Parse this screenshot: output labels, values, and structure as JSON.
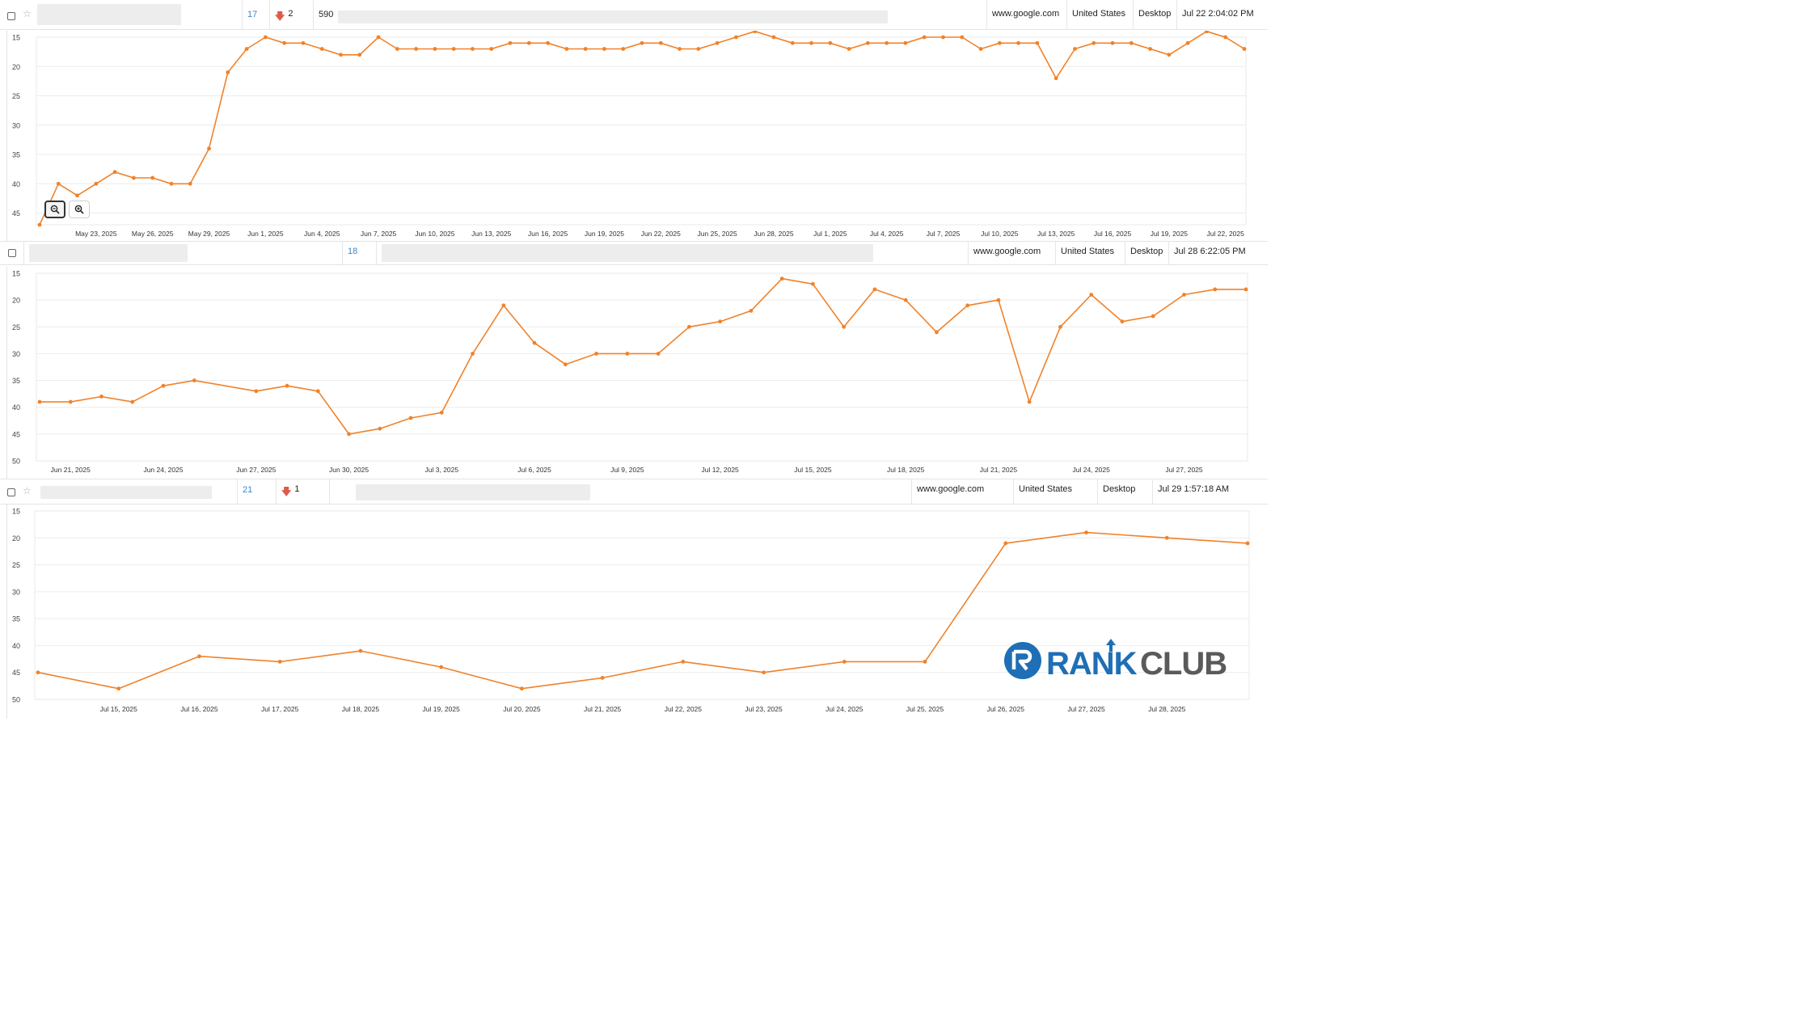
{
  "rows": [
    {
      "position": "17",
      "change": "2",
      "volume": "590",
      "engine": "www.google.com",
      "country": "United States",
      "device": "Desktop",
      "updated": "Jul 22 2:04:02 PM"
    },
    {
      "position": "18",
      "engine": "www.google.com",
      "country": "United States",
      "device": "Desktop",
      "updated": "Jul 28 6:22:05 PM"
    },
    {
      "position": "21",
      "change": "1",
      "engine": "www.google.com",
      "country": "United States",
      "device": "Desktop",
      "updated": "Jul 29 1:57:18 AM"
    }
  ],
  "icons": {
    "checkbox": "checkbox-icon",
    "star": "star-icon",
    "down_arrow": "arrow-down-icon",
    "zoom_out": "zoom-out-icon",
    "zoom_in": "zoom-in-icon"
  },
  "colors": {
    "line": "#f0822a",
    "grid": "#ececec",
    "link": "#3a87c8",
    "down": "#e05a4a",
    "logo_blue": "#1e6fb5",
    "logo_gray": "#5a5a5a"
  },
  "logo": {
    "rank": "RANK",
    "club": "CLUB"
  },
  "chart_data": [
    {
      "type": "line",
      "ylim": [
        15,
        47
      ],
      "y_reversed": true,
      "grid": true,
      "yticks": [
        "15",
        "20",
        "25",
        "30",
        "35",
        "40",
        "45"
      ],
      "xtick_labels": [
        "May 23, 2025",
        "May 26, 2025",
        "May 29, 2025",
        "Jun 1, 2025",
        "Jun 4, 2025",
        "Jun 7, 2025",
        "Jun 10, 2025",
        "Jun 13, 2025",
        "Jun 16, 2025",
        "Jun 19, 2025",
        "Jun 22, 2025",
        "Jun 25, 2025",
        "Jun 28, 2025",
        "Jul 1, 2025",
        "Jul 4, 2025",
        "Jul 7, 2025",
        "Jul 10, 2025",
        "Jul 13, 2025",
        "Jul 16, 2025",
        "Jul 19, 2025",
        "Jul 22, 2025"
      ],
      "x_start": "2025-05-20",
      "values": [
        47,
        40,
        42,
        40,
        38,
        39,
        39,
        40,
        40,
        34,
        21,
        17,
        15,
        16,
        16,
        17,
        18,
        18,
        15,
        17,
        17,
        17,
        17,
        17,
        17,
        16,
        16,
        16,
        17,
        17,
        17,
        17,
        16,
        16,
        17,
        17,
        16,
        15,
        14,
        15,
        16,
        16,
        16,
        17,
        16,
        16,
        16,
        15,
        15,
        15,
        17,
        16,
        16,
        16,
        22,
        17,
        16,
        16,
        16,
        17,
        18,
        16,
        14,
        15,
        17
      ]
    },
    {
      "type": "line",
      "ylim": [
        15,
        50
      ],
      "y_reversed": true,
      "grid": true,
      "yticks": [
        "15",
        "20",
        "25",
        "30",
        "35",
        "40",
        "45",
        "50"
      ],
      "xtick_labels": [
        "Jun 21, 2025",
        "Jun 24, 2025",
        "Jun 27, 2025",
        "Jun 30, 2025",
        "Jul 3, 2025",
        "Jul 6, 2025",
        "Jul 9, 2025",
        "Jul 12, 2025",
        "Jul 15, 2025",
        "Jul 18, 2025",
        "Jul 21, 2025",
        "Jul 24, 2025",
        "Jul 27, 2025"
      ],
      "x_start": "2025-06-21",
      "points": [
        [
          "2025-06-20",
          39
        ],
        [
          "2025-06-21",
          39
        ],
        [
          "2025-06-22",
          38
        ],
        [
          "2025-06-23",
          39
        ],
        [
          "2025-06-24",
          36
        ],
        [
          "2025-06-25",
          35
        ],
        [
          "2025-06-27",
          37
        ],
        [
          "2025-06-28",
          36
        ],
        [
          "2025-06-29",
          37
        ],
        [
          "2025-06-30",
          45
        ],
        [
          "2025-07-01",
          44
        ],
        [
          "2025-07-02",
          42
        ],
        [
          "2025-07-03",
          41
        ],
        [
          "2025-07-04",
          30
        ],
        [
          "2025-07-05",
          21
        ],
        [
          "2025-07-06",
          28
        ],
        [
          "2025-07-07",
          32
        ],
        [
          "2025-07-08",
          30
        ],
        [
          "2025-07-09",
          30
        ],
        [
          "2025-07-10",
          30
        ],
        [
          "2025-07-11",
          25
        ],
        [
          "2025-07-12",
          24
        ],
        [
          "2025-07-13",
          22
        ],
        [
          "2025-07-14",
          16
        ],
        [
          "2025-07-15",
          17
        ],
        [
          "2025-07-16",
          25
        ],
        [
          "2025-07-17",
          18
        ],
        [
          "2025-07-18",
          20
        ],
        [
          "2025-07-19",
          26
        ],
        [
          "2025-07-20",
          21
        ],
        [
          "2025-07-21",
          20
        ],
        [
          "2025-07-22",
          39
        ],
        [
          "2025-07-23",
          25
        ],
        [
          "2025-07-24",
          19
        ],
        [
          "2025-07-25",
          24
        ],
        [
          "2025-07-26",
          23
        ],
        [
          "2025-07-27",
          19
        ],
        [
          "2025-07-28",
          18
        ],
        [
          "2025-07-29",
          18
        ]
      ]
    },
    {
      "type": "line",
      "ylim": [
        15,
        50
      ],
      "y_reversed": true,
      "grid": true,
      "yticks": [
        "15",
        "20",
        "25",
        "30",
        "35",
        "40",
        "45",
        "50"
      ],
      "xtick_labels": [
        "Jul 15, 2025",
        "Jul 16, 2025",
        "Jul 17, 2025",
        "Jul 18, 2025",
        "Jul 19, 2025",
        "Jul 20, 2025",
        "Jul 21, 2025",
        "Jul 22, 2025",
        "Jul 23, 2025",
        "Jul 24, 2025",
        "Jul 25, 2025",
        "Jul 26, 2025",
        "Jul 27, 2025",
        "Jul 28, 2025"
      ],
      "x_start": "2025-07-15",
      "points": [
        [
          "2025-07-14",
          45
        ],
        [
          "2025-07-15",
          48
        ],
        [
          "2025-07-16",
          42
        ],
        [
          "2025-07-17",
          43
        ],
        [
          "2025-07-18",
          41
        ],
        [
          "2025-07-19",
          44
        ],
        [
          "2025-07-20",
          48
        ],
        [
          "2025-07-21",
          46
        ],
        [
          "2025-07-22",
          43
        ],
        [
          "2025-07-23",
          45
        ],
        [
          "2025-07-24",
          43
        ],
        [
          "2025-07-25",
          43
        ],
        [
          "2025-07-26",
          21
        ],
        [
          "2025-07-27",
          19
        ],
        [
          "2025-07-28",
          20
        ],
        [
          "2025-07-29",
          21
        ]
      ]
    }
  ]
}
